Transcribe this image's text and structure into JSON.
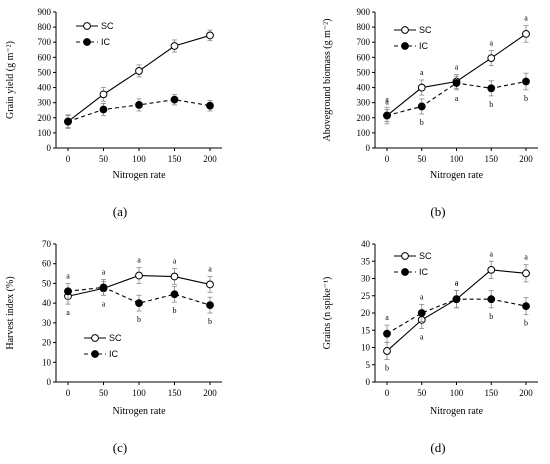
{
  "chart_data": [
    {
      "type": "line",
      "panel_label": "(a)",
      "x": [
        "0",
        "50",
        "100",
        "150",
        "200"
      ],
      "xlabel": "Nitrogen rate",
      "ylabel": "Grain yield (g m⁻²)",
      "ylim": [
        0,
        900
      ],
      "yticks": [
        "0",
        "100",
        "200",
        "300",
        "400",
        "500",
        "600",
        "700",
        "800",
        "900"
      ],
      "legend_position": "top-left",
      "series": [
        {
          "name": "SC",
          "style": "solid",
          "marker": "open-circle",
          "values": [
            175,
            355,
            510,
            675,
            745
          ],
          "errors": [
            45,
            45,
            40,
            40,
            35
          ],
          "letters": []
        },
        {
          "name": "IC",
          "style": "dashed",
          "marker": "filled-circle",
          "values": [
            175,
            255,
            285,
            320,
            280
          ],
          "errors": [
            40,
            40,
            40,
            35,
            35
          ],
          "letters": []
        }
      ]
    },
    {
      "type": "line",
      "panel_label": "(b)",
      "x": [
        "0",
        "50",
        "100",
        "150",
        "200"
      ],
      "xlabel": "Nitrogen rate",
      "ylabel": "Aboveground biomass (g m⁻²)",
      "ylim": [
        0,
        900
      ],
      "yticks": [
        "0",
        "100",
        "200",
        "300",
        "400",
        "500",
        "600",
        "700",
        "800",
        "900"
      ],
      "legend_position": "top-left",
      "series": [
        {
          "name": "SC",
          "style": "solid",
          "marker": "open-circle",
          "values": [
            215,
            400,
            440,
            595,
            755
          ],
          "errors": [
            40,
            50,
            45,
            50,
            55
          ],
          "letters": [
            "a",
            "a",
            "a",
            "a",
            "a"
          ]
        },
        {
          "name": "IC",
          "style": "dashed",
          "marker": "filled-circle",
          "values": [
            215,
            275,
            430,
            395,
            440
          ],
          "errors": [
            55,
            50,
            45,
            50,
            55
          ],
          "letters": [
            "a",
            "b",
            "a",
            "b",
            "b"
          ]
        }
      ]
    },
    {
      "type": "line",
      "panel_label": "(c)",
      "x": [
        "0",
        "50",
        "100",
        "150",
        "200"
      ],
      "xlabel": "Nitrogen rate",
      "ylabel": "Harvest index (%)",
      "ylim": [
        0,
        70
      ],
      "yticks": [
        "0",
        "10",
        "20",
        "30",
        "40",
        "50",
        "60",
        "70"
      ],
      "legend_position": "center-left",
      "series": [
        {
          "name": "SC",
          "style": "solid",
          "marker": "open-circle",
          "values": [
            43.5,
            47.5,
            54,
            53.5,
            49.5
          ],
          "errors": [
            4,
            3.5,
            4,
            4,
            4
          ],
          "letters": [
            "a",
            "a",
            "a",
            "a",
            "a"
          ]
        },
        {
          "name": "IC",
          "style": "dashed",
          "marker": "filled-circle",
          "values": [
            46,
            48,
            40,
            44.5,
            39
          ],
          "errors": [
            4,
            4,
            4,
            4,
            4
          ],
          "letters": [
            "a",
            "a",
            "b",
            "b",
            "b"
          ]
        }
      ]
    },
    {
      "type": "line",
      "panel_label": "(d)",
      "x": [
        "0",
        "50",
        "100",
        "150",
        "200"
      ],
      "xlabel": "Nitrogen rate",
      "ylabel": "Grains (n spike⁻¹)",
      "ylim": [
        0,
        40
      ],
      "yticks": [
        "0",
        "5",
        "10",
        "15",
        "20",
        "25",
        "30",
        "35",
        "40"
      ],
      "legend_position": "top-left",
      "series": [
        {
          "name": "SC",
          "style": "solid",
          "marker": "open-circle",
          "values": [
            9,
            18,
            24,
            32.5,
            31.5
          ],
          "errors": [
            2.5,
            2.5,
            2.5,
            2.5,
            2.5
          ],
          "letters": [
            "b",
            "a",
            "a",
            "a",
            "a"
          ]
        },
        {
          "name": "IC",
          "style": "dashed",
          "marker": "filled-circle",
          "values": [
            14,
            20,
            24,
            24,
            22
          ],
          "errors": [
            2.5,
            2.5,
            2.5,
            2.5,
            2.5
          ],
          "letters": [
            "a",
            "a",
            "a",
            "b",
            "b"
          ]
        }
      ]
    }
  ]
}
